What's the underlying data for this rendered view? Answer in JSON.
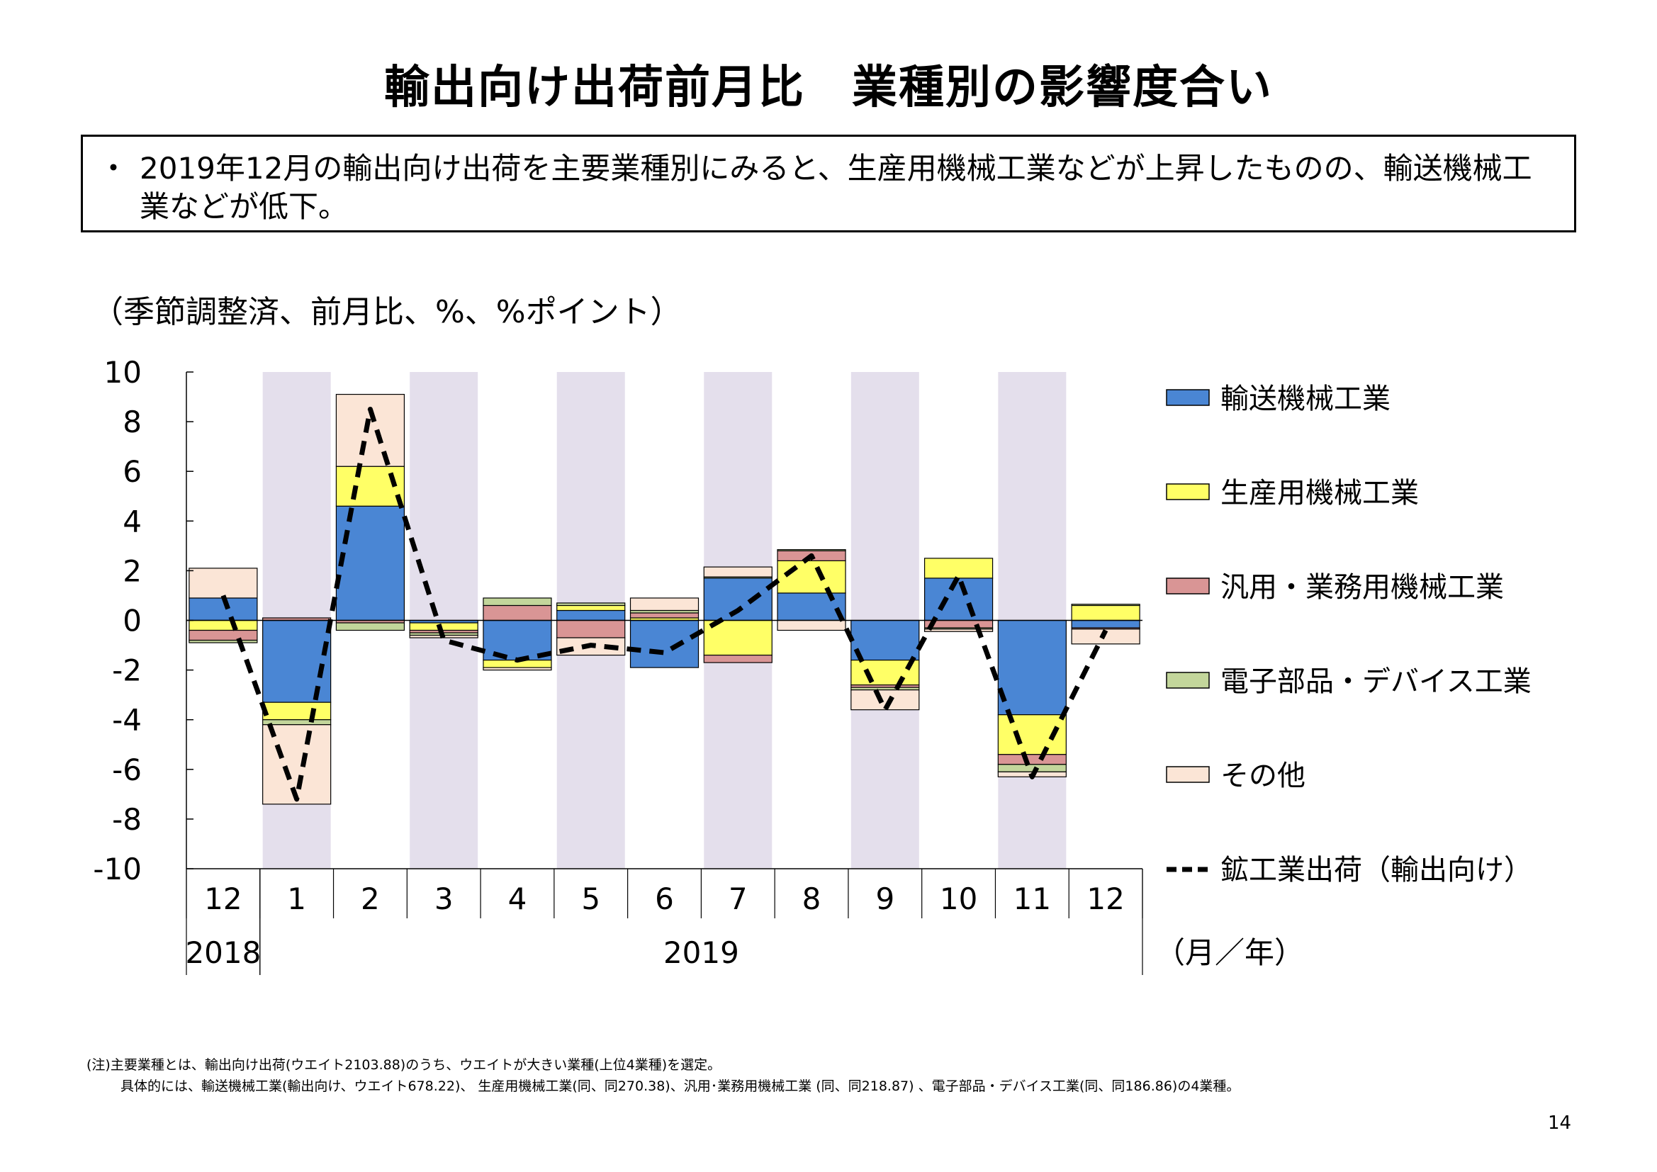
{
  "title": "輸出向け出荷前月比　業種別の影響度合い",
  "summary": {
    "bullet": "・",
    "text": "2019年12月の輸出向け出荷を主要業種別にみると、生産用機械工業などが上昇したものの、輸送機械工業などが低下。"
  },
  "unit_label": "（季節調整済、前月比、%、%ポイント）",
  "chart_data": {
    "type": "bar",
    "stacked": true,
    "categories": [
      "12",
      "1",
      "2",
      "3",
      "4",
      "5",
      "6",
      "7",
      "8",
      "9",
      "10",
      "11",
      "12"
    ],
    "year_groups": [
      {
        "label": "2018",
        "start": 0,
        "end": 0
      },
      {
        "label": "2019",
        "start": 1,
        "end": 12
      }
    ],
    "x_unit_label": "（月／年）",
    "yticks": [
      "10",
      "8",
      "6",
      "4",
      "2",
      "0",
      "-2",
      "-4",
      "-6",
      "-8",
      "-10"
    ],
    "ylim": [
      -10,
      10
    ],
    "shaded_categories": [
      1,
      3,
      5,
      7,
      9,
      11
    ],
    "shade_color": "#e4dfec",
    "series": [
      {
        "name": "輸送機械工業",
        "color": "#4a86d4",
        "values": [
          0.9,
          -3.3,
          4.6,
          -0.1,
          -1.6,
          0.4,
          -1.9,
          1.7,
          1.1,
          -1.6,
          1.7,
          -3.8,
          -0.3
        ]
      },
      {
        "name": "生産用機械工業",
        "color": "#ffff66",
        "values": [
          -0.4,
          -0.7,
          1.6,
          -0.3,
          -0.3,
          0.2,
          0.1,
          -1.4,
          1.3,
          -1.0,
          0.8,
          -1.6,
          0.6
        ]
      },
      {
        "name": "汎用・業務用機械工業",
        "color": "#d99595",
        "values": [
          -0.4,
          0.1,
          -0.1,
          -0.1,
          0.6,
          -0.7,
          0.2,
          -0.3,
          0.4,
          -0.1,
          -0.3,
          -0.4,
          -0.05
        ]
      },
      {
        "name": "電子部品・デバイス工業",
        "color": "#c3d69b",
        "values": [
          -0.1,
          -0.2,
          -0.3,
          -0.1,
          0.3,
          0.1,
          0.1,
          0.05,
          0.05,
          -0.1,
          -0.05,
          -0.3,
          0.05
        ]
      },
      {
        "name": "その他",
        "color": "#fbe5d6",
        "values": [
          1.2,
          -3.2,
          2.9,
          -0.1,
          -0.1,
          -0.7,
          0.5,
          0.4,
          -0.4,
          -0.8,
          -0.1,
          -0.2,
          -0.6
        ]
      }
    ],
    "line": {
      "name": "鉱工業出荷（輸出向け）",
      "color": "#000000",
      "values": [
        1.0,
        -7.2,
        8.5,
        -0.8,
        -1.6,
        -1.0,
        -1.3,
        0.4,
        2.6,
        -3.6,
        1.8,
        -6.3,
        -0.4
      ]
    }
  },
  "footnote": {
    "line1": "(注)主要業種とは、輸出向け出荷(ウエイト2103.88)のうち、ウエイトが大きい業種(上位4業種)を選定。",
    "line2": "具体的には、輸送機械工業(輸出向け、ウエイト678.22)、 生産用機械工業(同、同270.38)、汎用･業務用機械工業 (同、同218.87) 、電子部品・デバイス工業(同、同186.86)の4業種。"
  },
  "page_number": "14"
}
